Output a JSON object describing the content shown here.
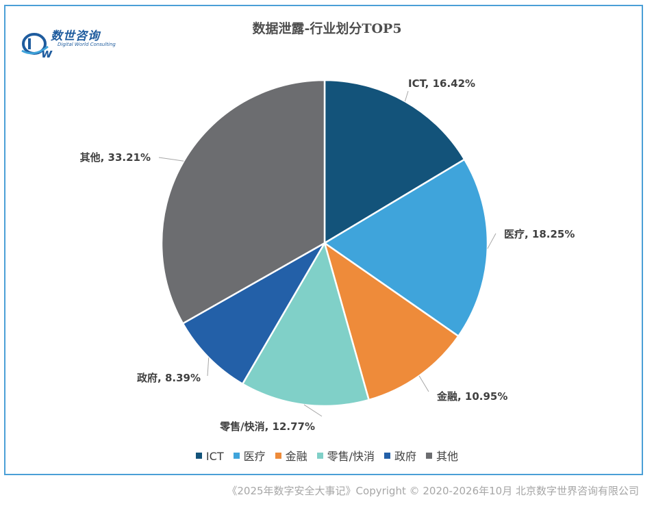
{
  "chart_data": {
    "type": "pie",
    "title": "数据泄露-行业划分TOP5",
    "categories": [
      "ICT",
      "医疗",
      "金融",
      "零售/快消",
      "政府",
      "其他"
    ],
    "values": [
      16.42,
      18.25,
      10.95,
      12.77,
      8.39,
      33.21
    ],
    "data_labels": [
      "ICT, 16.42%",
      "医疗, 18.25%",
      "金融, 10.95%",
      "零售/快消, 12.77%",
      "政府, 8.39%",
      "其他, 33.21%"
    ],
    "colors": [
      "#13537a",
      "#3fa4db",
      "#ee8b3a",
      "#80d0c8",
      "#2360a8",
      "#6c6d70"
    ],
    "legend_position": "bottom"
  },
  "logo": {
    "name_cn": "数世咨询",
    "name_en": "Digital World Consulting"
  },
  "footer": "《2025年数字安全大事记》Copyright © 2020-2026年10月 北京数字世界咨询有限公司"
}
